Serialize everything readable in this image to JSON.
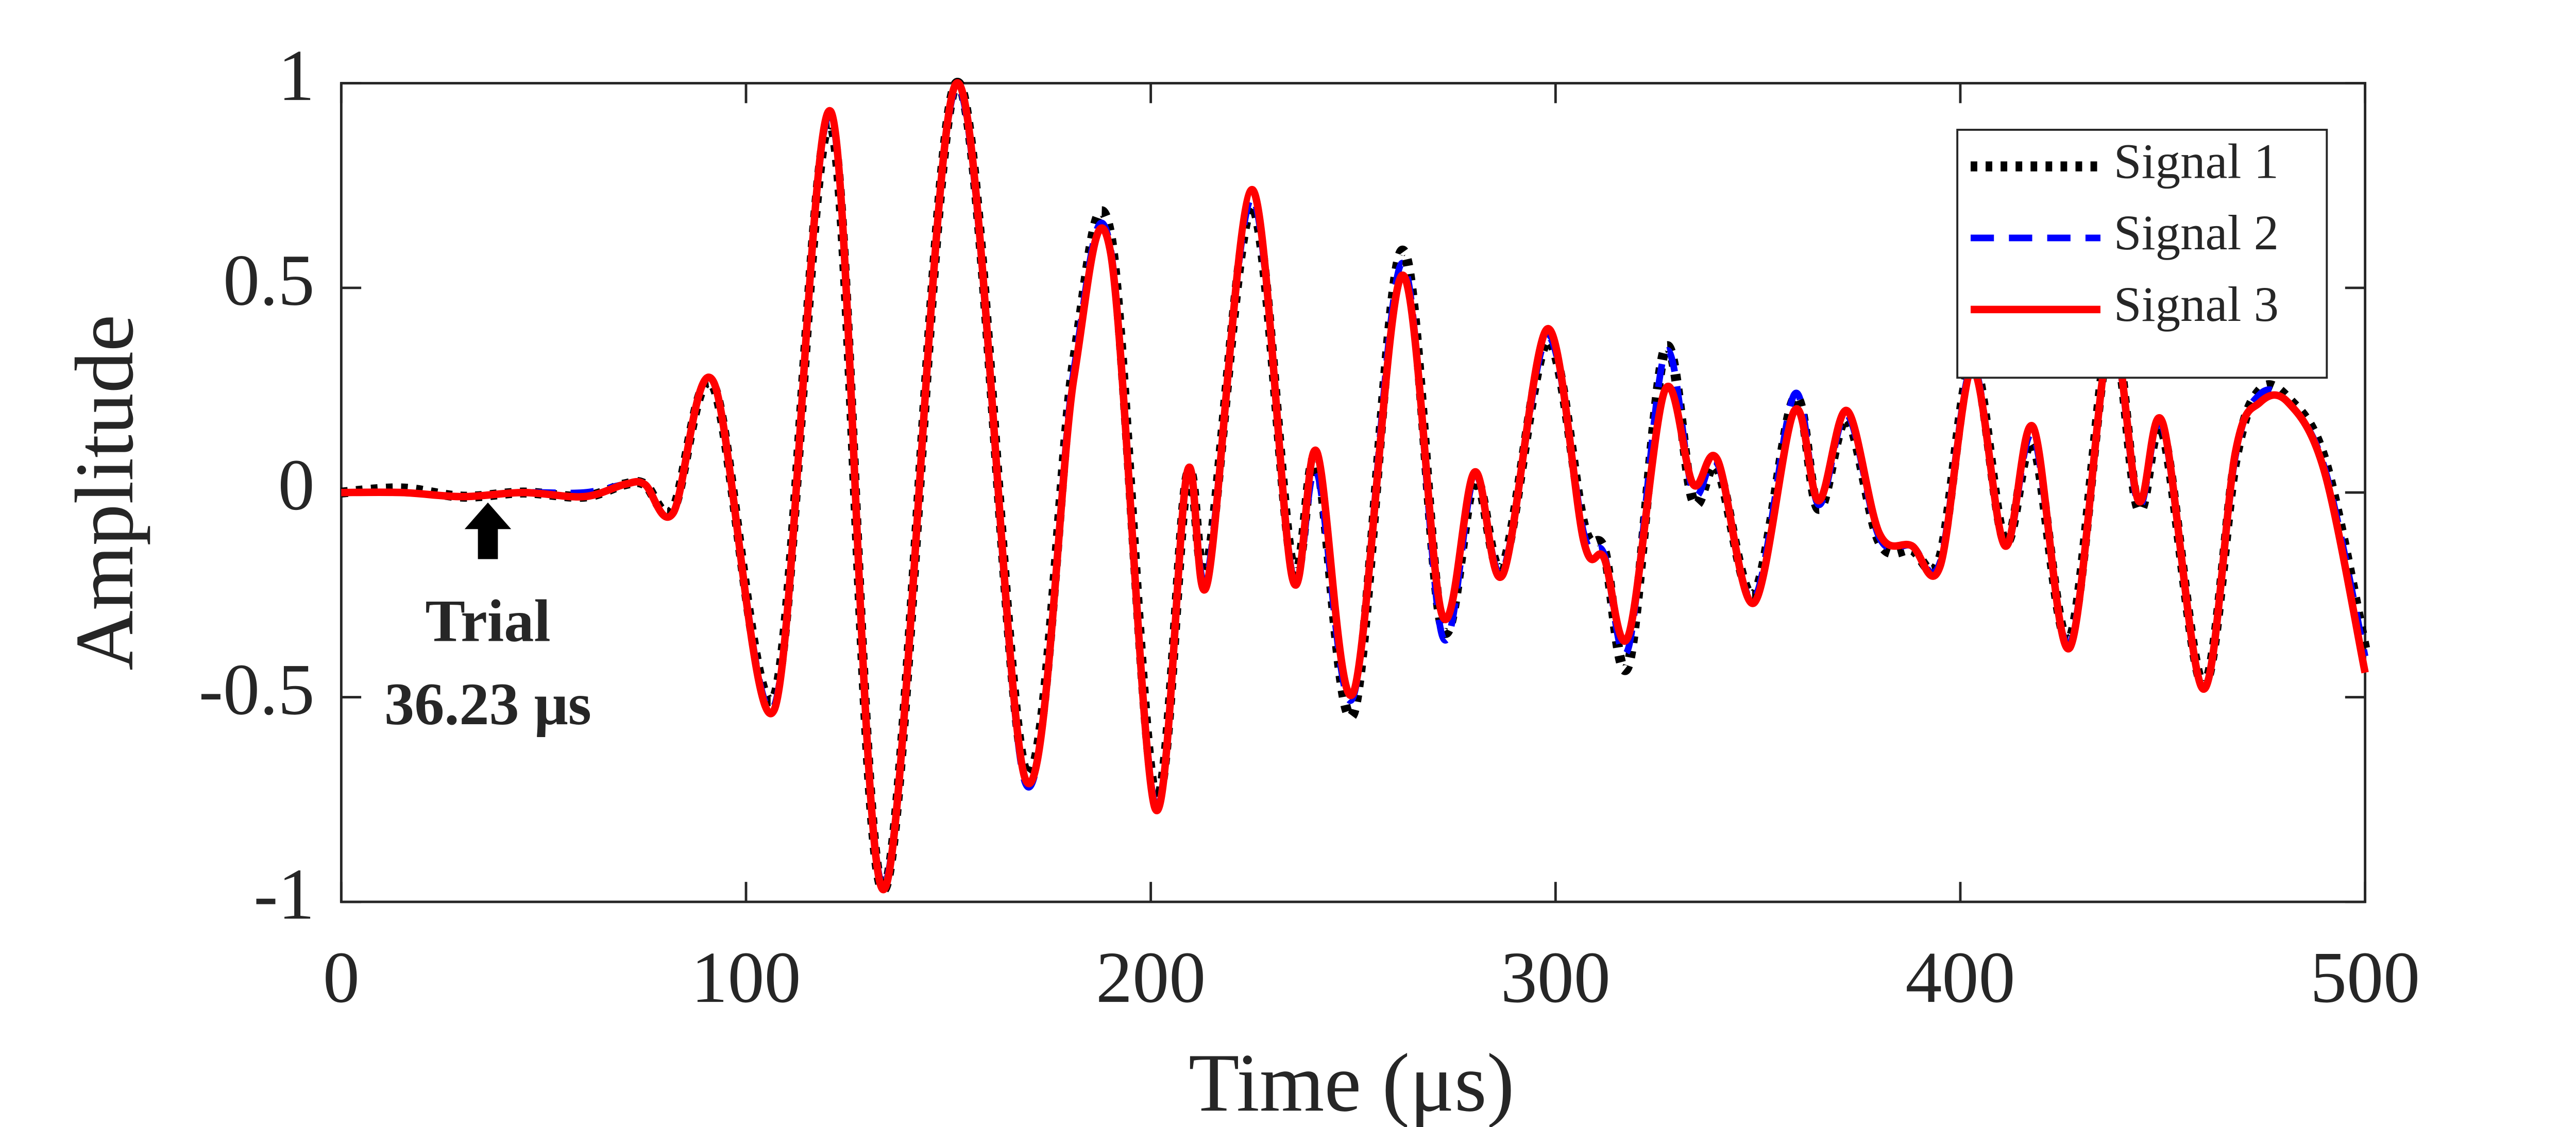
{
  "chart_data": {
    "type": "line",
    "xlabel": "Time (μs)",
    "ylabel": "Amplitude",
    "xlim": [
      0,
      500
    ],
    "ylim": [
      -1,
      1
    ],
    "xticks": [
      0,
      100,
      200,
      300,
      400,
      500
    ],
    "yticks": [
      -1,
      -0.5,
      0,
      0.5,
      1
    ],
    "legend": "upper right",
    "annotation": {
      "x": 36.23,
      "lines": [
        "Trial",
        "36.23 μs"
      ]
    },
    "x": [
      0,
      15,
      30,
      45,
      60,
      70,
      75,
      82,
      92,
      107,
      121,
      134,
      152,
      169,
      181,
      190,
      201,
      209,
      214,
      225,
      235,
      241,
      250,
      262,
      272,
      280,
      287,
      298,
      307,
      312,
      318,
      327,
      334,
      340,
      349,
      359,
      365,
      372,
      380,
      388,
      395,
      403,
      411,
      418,
      427,
      437,
      444,
      450,
      460,
      468,
      474,
      481,
      490,
      500
    ],
    "series": [
      {
        "name": "Signal 1",
        "color": "#000000",
        "linestyle": "dotted",
        "values": [
          0,
          0.01,
          -0.01,
          0,
          -0.01,
          0.02,
          0.02,
          -0.04,
          0.26,
          -0.5,
          0.9,
          -0.97,
          1.0,
          -0.68,
          0.32,
          0.63,
          -0.74,
          0.04,
          -0.18,
          0.7,
          -0.18,
          0.08,
          -0.54,
          0.59,
          -0.33,
          0.03,
          -0.18,
          0.37,
          -0.08,
          -0.14,
          -0.42,
          0.35,
          -0.02,
          0.06,
          -0.25,
          0.23,
          -0.04,
          0.18,
          -0.12,
          -0.14,
          -0.16,
          0.32,
          -0.12,
          0.12,
          -0.36,
          0.39,
          -0.04,
          0.15,
          -0.47,
          0.08,
          0.25,
          0.23,
          0.08,
          -0.38
        ]
      },
      {
        "name": "Signal 2",
        "color": "#0000ff",
        "linestyle": "dashed",
        "values": [
          0,
          0,
          -0.01,
          0,
          0,
          0.02,
          0.02,
          -0.05,
          0.27,
          -0.52,
          0.92,
          -0.96,
          0.99,
          -0.71,
          0.3,
          0.6,
          -0.76,
          0.05,
          -0.2,
          0.72,
          -0.2,
          0.05,
          -0.5,
          0.56,
          -0.35,
          0.04,
          -0.19,
          0.38,
          -0.1,
          -0.15,
          -0.38,
          0.34,
          0,
          0.07,
          -0.26,
          0.24,
          -0.03,
          0.19,
          -0.11,
          -0.13,
          -0.17,
          0.31,
          -0.13,
          0.14,
          -0.37,
          0.37,
          -0.03,
          0.16,
          -0.48,
          0.09,
          0.24,
          0.22,
          0.06,
          -0.4
        ]
      },
      {
        "name": "Signal 3",
        "color": "#ff0000",
        "linestyle": "solid",
        "values": [
          0,
          0,
          -0.01,
          0,
          -0.01,
          0.02,
          0.02,
          -0.05,
          0.27,
          -0.53,
          0.93,
          -0.97,
          1.0,
          -0.7,
          0.28,
          0.59,
          -0.77,
          0.05,
          -0.22,
          0.74,
          -0.21,
          0.1,
          -0.49,
          0.53,
          -0.3,
          0.05,
          -0.2,
          0.4,
          -0.12,
          -0.16,
          -0.35,
          0.25,
          0.02,
          0.08,
          -0.27,
          0.2,
          -0.02,
          0.2,
          -0.1,
          -0.13,
          -0.18,
          0.3,
          -0.13,
          0.16,
          -0.38,
          0.38,
          -0.02,
          0.17,
          -0.48,
          0.1,
          0.22,
          0.22,
          0.05,
          -0.44
        ]
      }
    ]
  }
}
